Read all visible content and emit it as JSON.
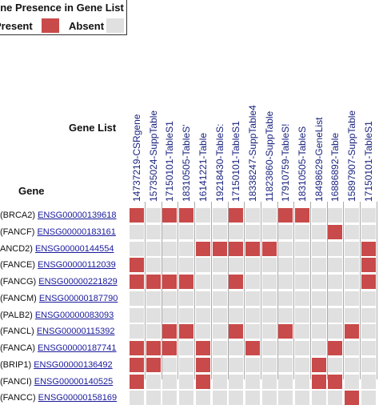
{
  "legend": {
    "title": "ene Presence in Gene List",
    "present_label": "Present",
    "absent_label": "Absent",
    "present_color": "#c94a4a",
    "absent_color": "#e0e0e0"
  },
  "headers": {
    "gene_list": "Gene List",
    "gene": "Gene"
  },
  "columns": [
    "14737219-CSRgene",
    "15735024-SuppTable",
    "17150101-TableS1",
    "18310505-TableS'",
    "16141221-Table",
    "19218430-TableS:",
    "17150101-TableS1",
    "18338247-SuppTable4",
    "11823860-SuppTable",
    "17910759-TableS!",
    "18310505-TableS",
    "18498629-GeneList",
    "16886892-Table",
    "15897907-SuppTable",
    "17150101-TableS1"
  ],
  "rows": [
    {
      "gene": "(BRCA2)",
      "ensembl": "ENSG00000139618",
      "cells": [
        1,
        0,
        1,
        1,
        0,
        0,
        1,
        0,
        0,
        1,
        1,
        0,
        0,
        0,
        0
      ]
    },
    {
      "gene": "(FANCF)",
      "ensembl": "ENSG00000183161",
      "cells": [
        0,
        0,
        0,
        0,
        0,
        0,
        0,
        0,
        0,
        0,
        0,
        0,
        1,
        0,
        0
      ]
    },
    {
      "gene": "ANCD2)",
      "ensembl": "ENSG00000144554",
      "cells": [
        0,
        0,
        0,
        0,
        1,
        1,
        1,
        1,
        1,
        0,
        0,
        0,
        0,
        0,
        1
      ]
    },
    {
      "gene": "(FANCE)",
      "ensembl": "ENSG00000112039",
      "cells": [
        1,
        0,
        0,
        0,
        0,
        0,
        0,
        0,
        0,
        0,
        0,
        0,
        0,
        0,
        1
      ]
    },
    {
      "gene": "(FANCG)",
      "ensembl": "ENSG00000221829",
      "cells": [
        1,
        1,
        1,
        1,
        0,
        0,
        1,
        0,
        0,
        0,
        0,
        0,
        0,
        0,
        1
      ]
    },
    {
      "gene": "(FANCM)",
      "ensembl": "ENSG00000187790",
      "cells": [
        0,
        0,
        0,
        0,
        0,
        0,
        0,
        0,
        0,
        0,
        0,
        0,
        0,
        0,
        0
      ]
    },
    {
      "gene": "(PALB2)",
      "ensembl": "ENSG00000083093",
      "cells": [
        0,
        0,
        0,
        0,
        0,
        0,
        0,
        0,
        0,
        0,
        0,
        0,
        0,
        0,
        0
      ]
    },
    {
      "gene": "(FANCL)",
      "ensembl": "ENSG00000115392",
      "cells": [
        0,
        0,
        1,
        1,
        0,
        0,
        1,
        0,
        0,
        1,
        0,
        0,
        0,
        1,
        0
      ]
    },
    {
      "gene": "(FANCA)",
      "ensembl": "ENSG00000187741",
      "cells": [
        1,
        1,
        1,
        0,
        1,
        0,
        0,
        1,
        0,
        0,
        0,
        0,
        1,
        0,
        0
      ]
    },
    {
      "gene": "(BRIP1)",
      "ensembl": "ENSG00000136492",
      "cells": [
        1,
        1,
        0,
        0,
        1,
        0,
        0,
        0,
        0,
        0,
        0,
        1,
        0,
        0,
        0
      ]
    },
    {
      "gene": "(FANCI)",
      "ensembl": "ENSG00000140525",
      "cells": [
        1,
        0,
        0,
        0,
        1,
        0,
        0,
        0,
        0,
        0,
        0,
        1,
        1,
        0,
        0
      ]
    },
    {
      "gene": "(FANCC)",
      "ensembl": "ENSG00000158169",
      "cells": [
        0,
        0,
        0,
        0,
        0,
        0,
        0,
        0,
        0,
        0,
        0,
        0,
        0,
        1,
        0
      ]
    }
  ]
}
